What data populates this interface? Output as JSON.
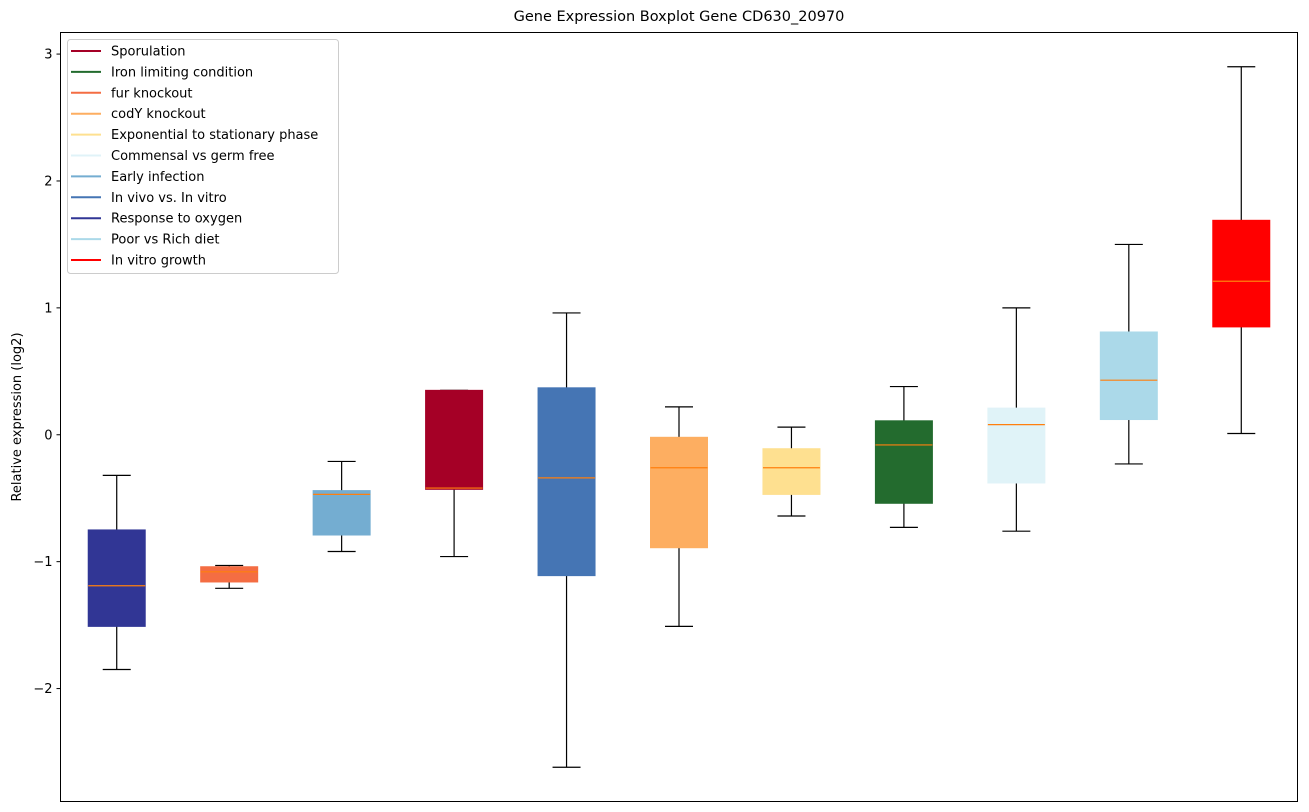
{
  "chart_data": {
    "type": "boxplot",
    "title": "Gene Expression Boxplot Gene CD630_20970",
    "xlabel": "",
    "ylabel": "Relative expression (log2)",
    "ylim": [
      -2.89,
      3.17
    ],
    "yticks": [
      -2,
      -1,
      0,
      1,
      2,
      3
    ],
    "ytick_labels": [
      "−2",
      "−1",
      "0",
      "1",
      "2",
      "3"
    ],
    "grid": false,
    "legend_position": "top-left",
    "median_color": "#ff7f0e",
    "legend": [
      {
        "label": "Sporulation",
        "color": "#a50026"
      },
      {
        "label": "Iron limiting condition",
        "color": "#236b2e"
      },
      {
        "label": "fur knockout",
        "color": "#f46d43"
      },
      {
        "label": "codY knockout",
        "color": "#fdae61"
      },
      {
        "label": "Exponential to stationary phase",
        "color": "#fee090"
      },
      {
        "label": "Commensal vs germ free",
        "color": "#e0f3f8"
      },
      {
        "label": "Early infection",
        "color": "#74add1"
      },
      {
        "label": "In vivo vs. In vitro",
        "color": "#4575b4"
      },
      {
        "label": "Response to oxygen",
        "color": "#313695"
      },
      {
        "label": "Poor vs Rich diet",
        "color": "#abd9e9"
      },
      {
        "label": "In vitro growth",
        "color": "#ff0000"
      }
    ],
    "series": [
      {
        "name": "Response to oxygen",
        "color": "#313695",
        "whisker_low": -1.85,
        "q1": -1.51,
        "median": -1.19,
        "q3": -0.75,
        "whisker_high": -0.32
      },
      {
        "name": "fur knockout",
        "color": "#f46d43",
        "whisker_low": -1.21,
        "q1": -1.16,
        "median": -1.08,
        "q3": -1.04,
        "whisker_high": -1.03
      },
      {
        "name": "Early infection",
        "color": "#74add1",
        "whisker_low": -0.92,
        "q1": -0.79,
        "median": -0.47,
        "q3": -0.44,
        "whisker_high": -0.21
      },
      {
        "name": "Sporulation",
        "color": "#a50026",
        "whisker_low": -0.96,
        "q1": -0.43,
        "median": -0.42,
        "q3": 0.35,
        "whisker_high": 0.35
      },
      {
        "name": "In vivo vs. In vitro",
        "color": "#4575b4",
        "whisker_low": -2.62,
        "q1": -1.11,
        "median": -0.34,
        "q3": 0.37,
        "whisker_high": 0.96
      },
      {
        "name": "codY knockout",
        "color": "#fdae61",
        "whisker_low": -1.51,
        "q1": -0.89,
        "median": -0.26,
        "q3": -0.02,
        "whisker_high": 0.22
      },
      {
        "name": "Exponential to stationary phase",
        "color": "#fee090",
        "whisker_low": -0.64,
        "q1": -0.47,
        "median": -0.26,
        "q3": -0.11,
        "whisker_high": 0.06
      },
      {
        "name": "Iron limiting condition",
        "color": "#236b2e",
        "whisker_low": -0.73,
        "q1": -0.54,
        "median": -0.08,
        "q3": 0.11,
        "whisker_high": 0.38
      },
      {
        "name": "Commensal vs germ free",
        "color": "#e0f3f8",
        "whisker_low": -0.76,
        "q1": -0.38,
        "median": 0.08,
        "q3": 0.21,
        "whisker_high": 1.0
      },
      {
        "name": "Poor vs Rich diet",
        "color": "#abd9e9",
        "whisker_low": -0.23,
        "q1": 0.12,
        "median": 0.43,
        "q3": 0.81,
        "whisker_high": 1.5
      },
      {
        "name": "In vitro growth",
        "color": "#ff0000",
        "whisker_low": 0.01,
        "q1": 0.85,
        "median": 1.21,
        "q3": 1.69,
        "whisker_high": 2.9
      }
    ]
  }
}
